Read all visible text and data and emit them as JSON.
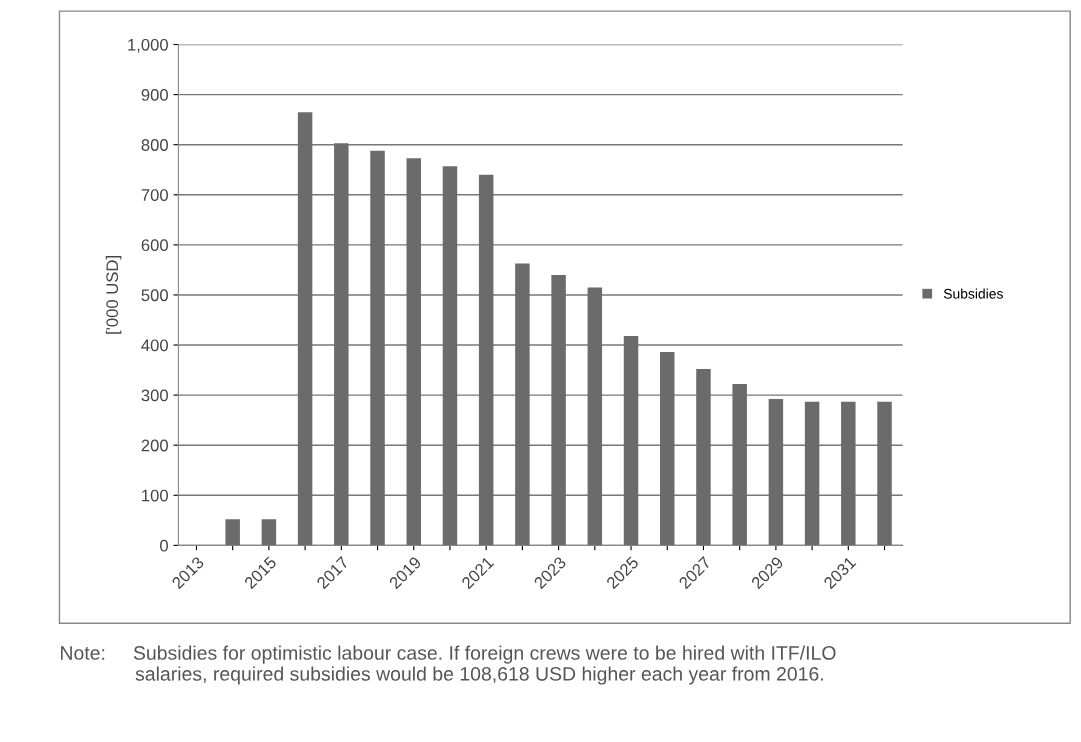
{
  "chart_data": {
    "type": "bar",
    "ylabel": "['000 USD]",
    "categories": [
      "2013",
      null,
      "2015",
      null,
      "2017",
      null,
      "2019",
      null,
      "2021",
      null,
      "2023",
      null,
      "2025",
      null,
      "2027",
      null,
      "2029",
      null,
      "2031",
      null
    ],
    "series": [
      {
        "name": "Subsidies",
        "color": "#6b6b6b",
        "values": [
          0,
          52,
          52,
          865,
          803,
          788,
          773,
          757,
          740,
          563,
          540,
          515,
          418,
          386,
          352,
          322,
          292,
          287,
          287,
          287
        ]
      }
    ],
    "ylim": [
      0,
      1000
    ],
    "yticks": [
      0,
      100,
      200,
      300,
      400,
      500,
      600,
      700,
      800,
      900,
      {
        "value": 1000,
        "label": "1,000"
      }
    ],
    "grid": "y",
    "legend": "right",
    "annotations": [
      "Note:     Subsidies for optimistic labour case. If foreign crews were to be hired with ITF/ILO\n              salaries, required subsidies would be 108,618 USD higher each year from 2016."
    ]
  }
}
